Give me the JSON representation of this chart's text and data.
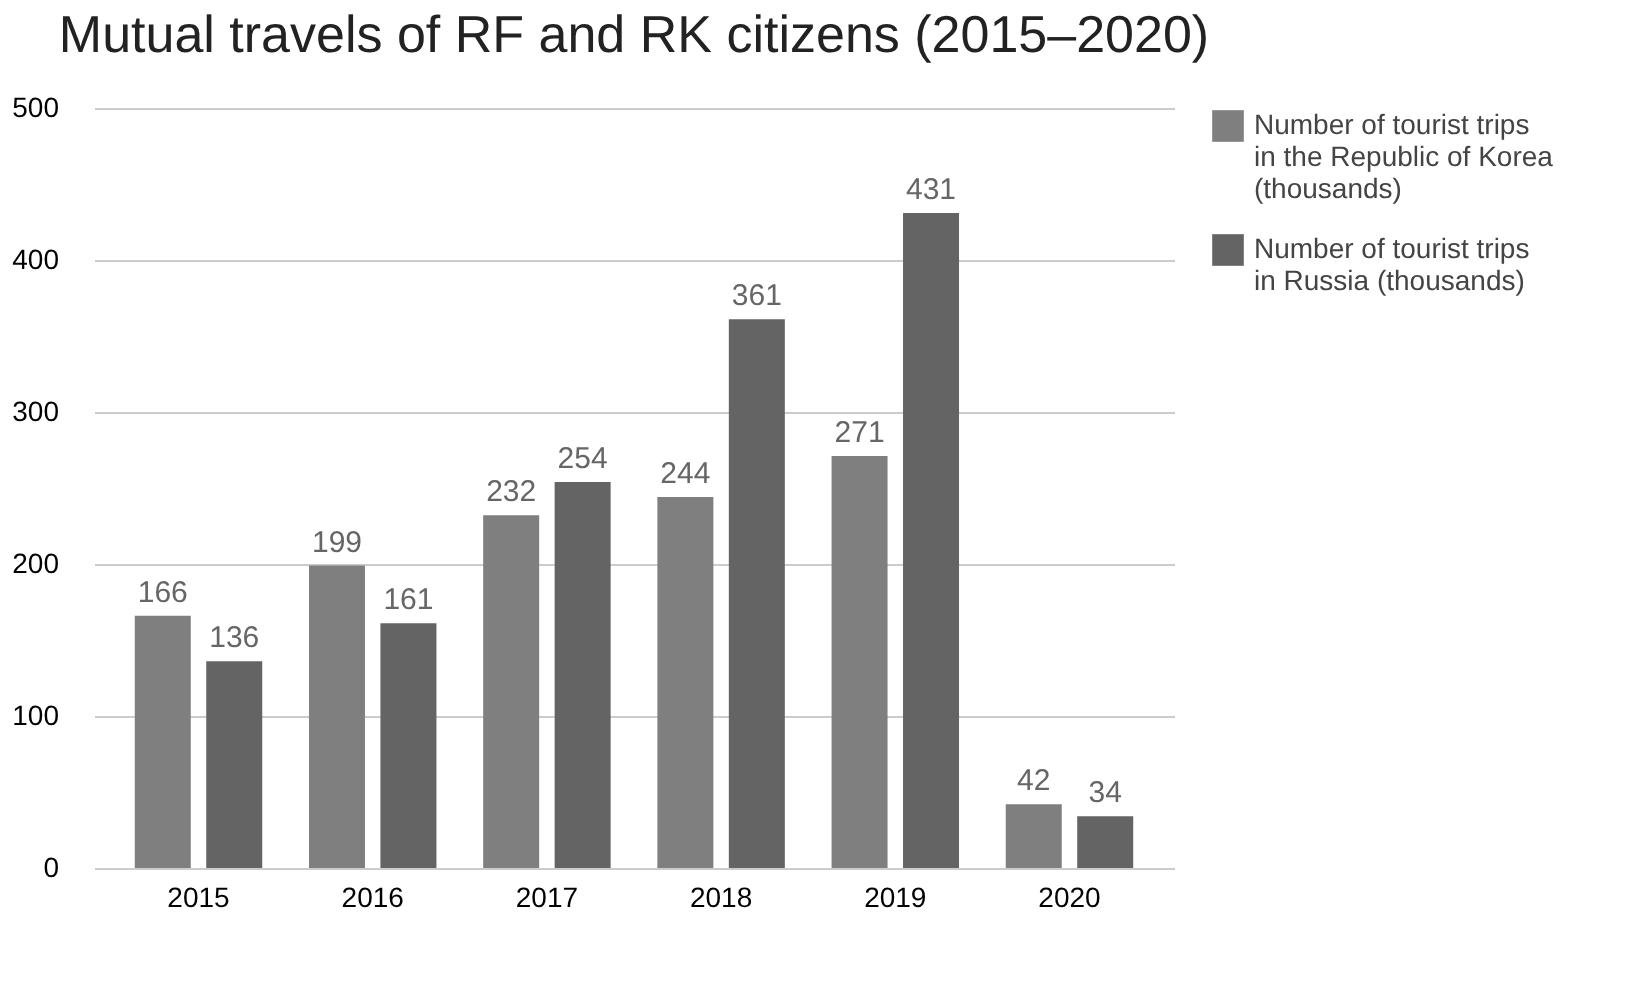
{
  "chart_data": {
    "type": "bar",
    "title": "Mutual travels of RF and RK citizens (2015–2020)",
    "categories": [
      "2015",
      "2016",
      "2017",
      "2018",
      "2019",
      "2020"
    ],
    "series": [
      {
        "name": "Number of tourist trips in the Republic of Korea (thousands)",
        "color": "#7f7f7f",
        "values": [
          166,
          199,
          232,
          244,
          271,
          42
        ]
      },
      {
        "name": "Number of tourist trips in Russia (thousands)",
        "color": "#646464",
        "values": [
          136,
          161,
          254,
          361,
          431,
          34
        ]
      }
    ],
    "ylim": [
      0,
      500
    ],
    "yticks": [
      0,
      100,
      200,
      300,
      400,
      500
    ],
    "grid": "y",
    "legend": "right",
    "data_labels": true
  }
}
